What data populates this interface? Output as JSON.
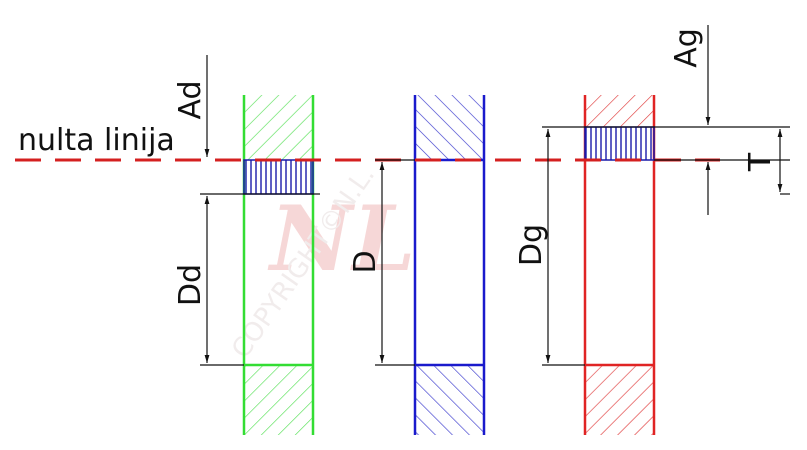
{
  "labels": {
    "zero_line": "nulta linija",
    "Ad": "Ad",
    "Dd": "Dd",
    "D": "D",
    "Dg": "Dg",
    "Ag": "Ag",
    "T": "T"
  },
  "watermark": {
    "logo": "NL",
    "text": "COPYRIGHT©N.L."
  },
  "colors": {
    "green": "#33dd33",
    "blue": "#1a1acc",
    "red": "#e02424",
    "zero_line": "#d42020",
    "dimension": "#111111",
    "watermark": "#f0b8b8"
  }
}
